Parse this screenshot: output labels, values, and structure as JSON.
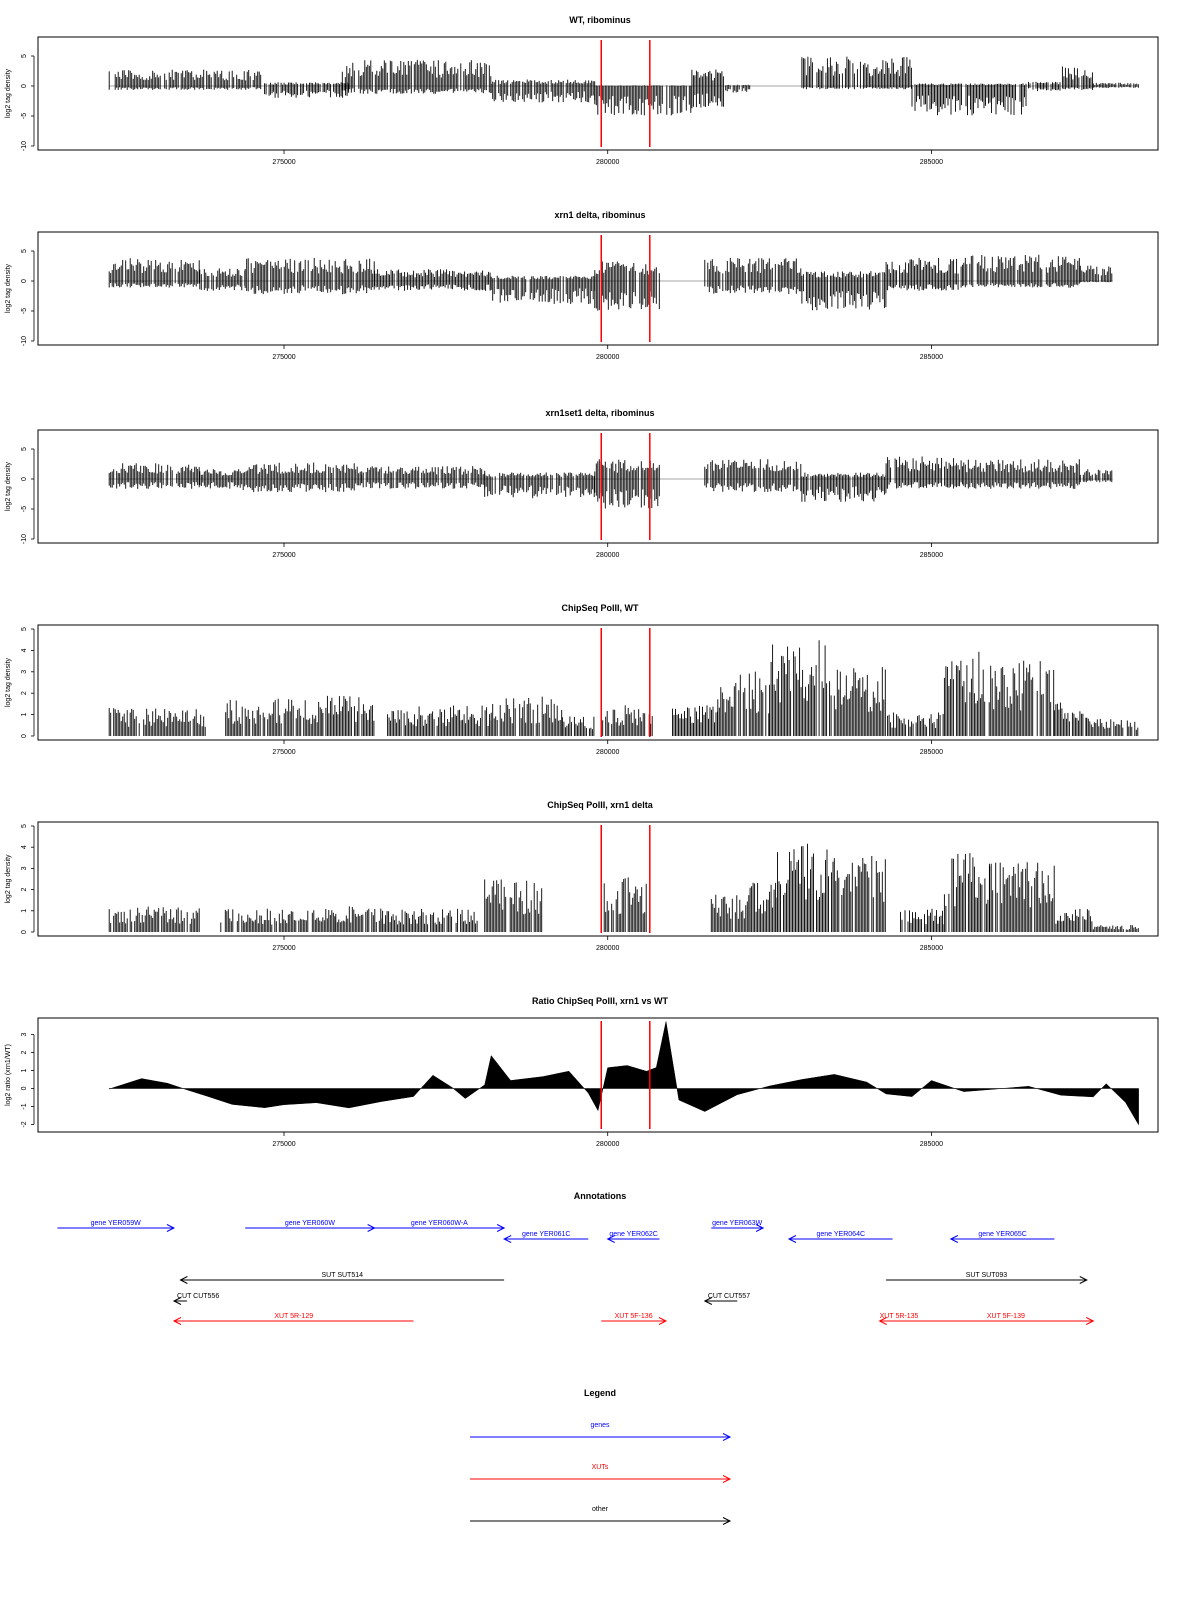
{
  "chart_data": [
    {
      "type": "bar",
      "title": "WT, ribominus",
      "xlabel": "",
      "ylabel": "log2 tag density",
      "xlim": [
        271200,
        288500
      ],
      "ylim": [
        -10,
        7.5
      ],
      "xticks": [
        275000,
        280000,
        285000
      ],
      "yticks": [
        -10,
        -5,
        0,
        5
      ],
      "grid": false,
      "legend": "none",
      "markers": [
        279900,
        280650
      ],
      "marker_color": "#ff0000",
      "segments": [
        {
          "start": 272300,
          "end": 274700,
          "plus": 2.5,
          "minus": -0.6
        },
        {
          "start": 274700,
          "end": 276000,
          "plus": 0.6,
          "minus": -1.8
        },
        {
          "start": 275900,
          "end": 278200,
          "plus": 4.0,
          "minus": -1.2
        },
        {
          "start": 278200,
          "end": 279800,
          "plus": 1.0,
          "minus": -2.5
        },
        {
          "start": 279800,
          "end": 281300,
          "plus": 0.1,
          "minus": -4.5
        },
        {
          "start": 281300,
          "end": 281800,
          "plus": 2.5,
          "minus": -3.5
        },
        {
          "start": 281800,
          "end": 282200,
          "plus": 0.2,
          "minus": -1.0
        },
        {
          "start": 283000,
          "end": 284700,
          "plus": 4.5,
          "minus": -0.5
        },
        {
          "start": 284700,
          "end": 286500,
          "plus": 0.4,
          "minus": -4.5
        },
        {
          "start": 286500,
          "end": 287000,
          "plus": 0.8,
          "minus": -0.8
        },
        {
          "start": 287000,
          "end": 287500,
          "plus": 3.0,
          "minus": -0.6
        },
        {
          "start": 287500,
          "end": 288200,
          "plus": 0.5,
          "minus": -0.3
        }
      ]
    },
    {
      "type": "bar",
      "title": "xrn1 delta, ribominus",
      "xlabel": "",
      "ylabel": "log2 tag density",
      "xlim": [
        271200,
        288500
      ],
      "ylim": [
        -10,
        7.5
      ],
      "xticks": [
        275000,
        280000,
        285000
      ],
      "yticks": [
        -10,
        -5,
        0,
        5
      ],
      "grid": false,
      "legend": "none",
      "markers": [
        279900,
        280650
      ],
      "marker_color": "#ff0000",
      "segments": [
        {
          "start": 272300,
          "end": 273700,
          "plus": 3.5,
          "minus": -1.0
        },
        {
          "start": 273700,
          "end": 274400,
          "plus": 2.0,
          "minus": -1.5
        },
        {
          "start": 274400,
          "end": 276400,
          "plus": 3.5,
          "minus": -2.0
        },
        {
          "start": 276400,
          "end": 278200,
          "plus": 1.8,
          "minus": -1.5
        },
        {
          "start": 278200,
          "end": 279800,
          "plus": 0.8,
          "minus": -3.5
        },
        {
          "start": 279800,
          "end": 280800,
          "plus": 3.0,
          "minus": -4.5
        },
        {
          "start": 281500,
          "end": 283000,
          "plus": 3.5,
          "minus": -2.0
        },
        {
          "start": 283000,
          "end": 284300,
          "plus": 1.5,
          "minus": -4.5
        },
        {
          "start": 284300,
          "end": 285500,
          "plus": 3.5,
          "minus": -1.5
        },
        {
          "start": 285500,
          "end": 287300,
          "plus": 4.0,
          "minus": -1.0
        },
        {
          "start": 287300,
          "end": 287800,
          "plus": 2.5,
          "minus": -0.2
        }
      ]
    },
    {
      "type": "bar",
      "title": "xrn1set1 delta, ribominus",
      "xlabel": "",
      "ylabel": "log2 tag density",
      "xlim": [
        271200,
        288500
      ],
      "ylim": [
        -10,
        7.5
      ],
      "xticks": [
        275000,
        280000,
        285000
      ],
      "yticks": [
        -10,
        -5,
        0,
        5
      ],
      "grid": false,
      "legend": "none",
      "markers": [
        279900,
        280650
      ],
      "marker_color": "#ff0000",
      "segments": [
        {
          "start": 272300,
          "end": 273700,
          "plus": 2.5,
          "minus": -1.5
        },
        {
          "start": 273700,
          "end": 274300,
          "plus": 1.5,
          "minus": -1.5
        },
        {
          "start": 274300,
          "end": 276200,
          "plus": 2.5,
          "minus": -2.0
        },
        {
          "start": 276200,
          "end": 278100,
          "plus": 2.0,
          "minus": -1.5
        },
        {
          "start": 278100,
          "end": 279800,
          "plus": 1.0,
          "minus": -3.0
        },
        {
          "start": 279800,
          "end": 280800,
          "plus": 3.0,
          "minus": -4.5
        },
        {
          "start": 281500,
          "end": 283000,
          "plus": 3.0,
          "minus": -2.0
        },
        {
          "start": 283000,
          "end": 284300,
          "plus": 1.0,
          "minus": -3.5
        },
        {
          "start": 284300,
          "end": 285500,
          "plus": 3.5,
          "minus": -1.5
        },
        {
          "start": 285500,
          "end": 287300,
          "plus": 3.0,
          "minus": -1.5
        },
        {
          "start": 287300,
          "end": 287800,
          "plus": 1.5,
          "minus": -0.5
        }
      ]
    },
    {
      "type": "bar",
      "title": "ChipSeq PolII, WT",
      "xlabel": "",
      "ylabel": "log2 tag density",
      "xlim": [
        271200,
        288500
      ],
      "ylim": [
        0,
        5
      ],
      "xticks": [
        275000,
        280000,
        285000
      ],
      "yticks": [
        0,
        1,
        2,
        3,
        4,
        5
      ],
      "grid": false,
      "legend": "none",
      "markers": [
        279900,
        280650
      ],
      "marker_color": "#ff0000",
      "segments": [
        {
          "start": 272300,
          "end": 273800,
          "plus": 1.2
        },
        {
          "start": 274100,
          "end": 275600,
          "plus": 1.6
        },
        {
          "start": 275600,
          "end": 276400,
          "plus": 1.8
        },
        {
          "start": 276600,
          "end": 278200,
          "plus": 1.3
        },
        {
          "start": 278200,
          "end": 279300,
          "plus": 1.7
        },
        {
          "start": 279300,
          "end": 279800,
          "plus": 0.9
        },
        {
          "start": 279900,
          "end": 280700,
          "plus": 1.3
        },
        {
          "start": 281000,
          "end": 281700,
          "plus": 1.3
        },
        {
          "start": 281700,
          "end": 282500,
          "plus": 2.8
        },
        {
          "start": 282500,
          "end": 283500,
          "plus": 4.1
        },
        {
          "start": 283500,
          "end": 284300,
          "plus": 3.0
        },
        {
          "start": 284300,
          "end": 285200,
          "plus": 1.0
        },
        {
          "start": 285200,
          "end": 285800,
          "plus": 3.8
        },
        {
          "start": 285800,
          "end": 286900,
          "plus": 3.2
        },
        {
          "start": 286900,
          "end": 287400,
          "plus": 1.5
        },
        {
          "start": 287400,
          "end": 288200,
          "plus": 0.8
        }
      ]
    },
    {
      "type": "bar",
      "title": "ChipSeq PolII, xrn1 delta",
      "xlabel": "",
      "ylabel": "log2 tag density",
      "xlim": [
        271200,
        288500
      ],
      "ylim": [
        0,
        5
      ],
      "xticks": [
        275000,
        280000,
        285000
      ],
      "yticks": [
        0,
        1,
        2,
        3,
        4,
        5
      ],
      "grid": false,
      "legend": "none",
      "markers": [
        279900,
        280650
      ],
      "marker_color": "#ff0000",
      "segments": [
        {
          "start": 272300,
          "end": 273700,
          "plus": 1.1
        },
        {
          "start": 274000,
          "end": 275800,
          "plus": 1.0
        },
        {
          "start": 275800,
          "end": 276500,
          "plus": 1.1
        },
        {
          "start": 276500,
          "end": 278000,
          "plus": 1.0
        },
        {
          "start": 278100,
          "end": 279000,
          "plus": 2.3
        },
        {
          "start": 279900,
          "end": 280600,
          "plus": 2.4
        },
        {
          "start": 281600,
          "end": 282200,
          "plus": 1.6
        },
        {
          "start": 282200,
          "end": 282600,
          "plus": 2.3
        },
        {
          "start": 282600,
          "end": 283500,
          "plus": 3.8
        },
        {
          "start": 283500,
          "end": 284300,
          "plus": 3.3
        },
        {
          "start": 284500,
          "end": 285200,
          "plus": 1.0
        },
        {
          "start": 285200,
          "end": 285900,
          "plus": 3.4
        },
        {
          "start": 285900,
          "end": 286900,
          "plus": 3.0
        },
        {
          "start": 286900,
          "end": 287500,
          "plus": 1.0
        },
        {
          "start": 287500,
          "end": 288200,
          "plus": 0.3
        }
      ]
    },
    {
      "type": "area",
      "title": "Ratio ChipSeq PolII, xrn1 vs WT",
      "xlabel": "",
      "ylabel": "log2 ratio (xrn1/WT)",
      "xlim": [
        271200,
        288500
      ],
      "ylim": [
        -2.2,
        3.7
      ],
      "xticks": [
        275000,
        280000,
        285000
      ],
      "yticks": [
        -2,
        -1,
        0,
        1,
        2,
        3
      ],
      "grid": false,
      "legend": "none",
      "markers": [
        279900,
        280650
      ],
      "marker_color": "#ff0000",
      "x": [
        272300,
        272800,
        273200,
        273500,
        273800,
        274200,
        274700,
        275000,
        275500,
        276000,
        276500,
        277000,
        277300,
        277600,
        277800,
        278100,
        278200,
        278500,
        279000,
        279400,
        279700,
        279850,
        280000,
        280300,
        280600,
        280750,
        280900,
        281100,
        281500,
        282000,
        282500,
        283000,
        283500,
        284000,
        284300,
        284700,
        285000,
        285500,
        286000,
        286500,
        287000,
        287500,
        287700,
        288000,
        288200
      ],
      "y": [
        -0.1,
        0.5,
        0.3,
        0.0,
        -0.4,
        -0.9,
        -1.0,
        -0.9,
        -0.8,
        -1.1,
        -0.7,
        -0.4,
        0.7,
        0.1,
        -0.5,
        0.2,
        1.8,
        0.5,
        0.6,
        0.9,
        -0.2,
        -1.2,
        1.1,
        1.3,
        1.0,
        1.1,
        3.7,
        -0.6,
        -1.3,
        -0.3,
        0.1,
        0.5,
        0.8,
        0.4,
        -0.3,
        -0.4,
        0.5,
        -0.2,
        -0.1,
        0.1,
        -0.3,
        -0.5,
        0.2,
        -0.8,
        -2.0
      ]
    },
    {
      "type": "other",
      "title": "Annotations",
      "xlim": [
        271200,
        288500
      ],
      "features": [
        {
          "label": "gene YER059W",
          "start": 271500,
          "end": 273300,
          "dir": "+",
          "color": "#0000ff",
          "row": 0
        },
        {
          "label": "gene YER060W",
          "start": 274400,
          "end": 276400,
          "dir": "+",
          "color": "#0000ff",
          "row": 0
        },
        {
          "label": "gene YER060W-A",
          "start": 276400,
          "end": 278400,
          "dir": "+",
          "color": "#0000ff",
          "row": 0
        },
        {
          "label": "gene YER061C",
          "start": 278400,
          "end": 279700,
          "dir": "-",
          "color": "#0000ff",
          "row": 1
        },
        {
          "label": "gene YER062C",
          "start": 280000,
          "end": 280800,
          "dir": "-",
          "color": "#0000ff",
          "row": 1
        },
        {
          "label": "gene YER063W",
          "start": 281600,
          "end": 282400,
          "dir": "+",
          "color": "#0000ff",
          "row": 0
        },
        {
          "label": "gene YER064C",
          "start": 282800,
          "end": 284400,
          "dir": "-",
          "color": "#0000ff",
          "row": 1
        },
        {
          "label": "gene YER065C",
          "start": 285300,
          "end": 286900,
          "dir": "-",
          "color": "#0000ff",
          "row": 1
        },
        {
          "label": "SUT SUT514",
          "start": 273400,
          "end": 278400,
          "dir": "-",
          "color": "#000000",
          "row": 2
        },
        {
          "label": "SUT SUT093",
          "start": 284300,
          "end": 287400,
          "dir": "+",
          "color": "#000000",
          "row": 2
        },
        {
          "label": "CUT CUT556",
          "start": 273300,
          "end": 273500,
          "dir": "-",
          "color": "#000000",
          "row": 3,
          "label_pos": "left"
        },
        {
          "label": "CUT CUT557",
          "start": 281500,
          "end": 282000,
          "dir": "-",
          "color": "#000000",
          "row": 3,
          "label_pos": "left"
        },
        {
          "label": "XUT 5R-129",
          "start": 273300,
          "end": 277000,
          "dir": "-",
          "color": "#ff0000",
          "row": 4
        },
        {
          "label": "XUT 5F-136",
          "start": 279900,
          "end": 280900,
          "dir": "+",
          "color": "#ff0000",
          "row": 4
        },
        {
          "label": "XUT 5R-135",
          "start": 284200,
          "end": 284800,
          "dir": "-",
          "color": "#ff0000",
          "row": 4
        },
        {
          "label": "XUT 5F-139",
          "start": 284800,
          "end": 287500,
          "dir": "+",
          "color": "#ff0000",
          "row": 4
        }
      ]
    },
    {
      "type": "other",
      "title": "Legend",
      "entries": [
        {
          "label": "genes",
          "color": "#0000ff"
        },
        {
          "label": "XUTs",
          "color": "#ff0000"
        },
        {
          "label": "other",
          "color": "#000000"
        }
      ]
    }
  ]
}
